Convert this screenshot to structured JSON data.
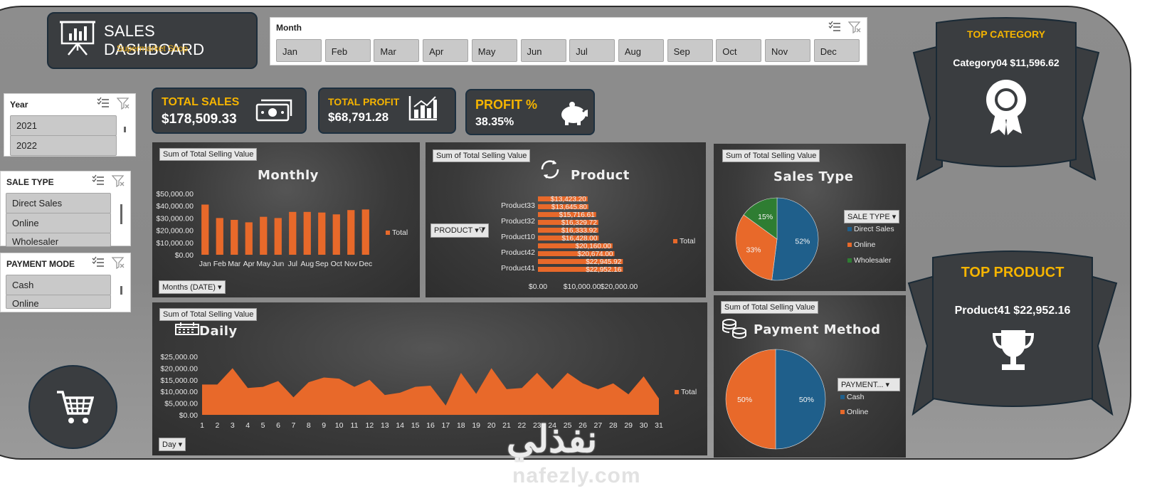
{
  "header": {
    "title": "SALES DASHBOARD",
    "subtitle": "Supermarket Shop",
    "icon": "presentation-board-icon"
  },
  "month_slicer": {
    "title": "Month",
    "items": [
      "Jan",
      "Feb",
      "Mar",
      "Apr",
      "May",
      "Jun",
      "Jul",
      "Aug",
      "Sep",
      "Oct",
      "Nov",
      "Dec"
    ]
  },
  "year_slicer": {
    "title": "Year",
    "items": [
      "2021",
      "2022"
    ]
  },
  "sale_type_slicer": {
    "title": "SALE TYPE",
    "items": [
      "Direct Sales",
      "Online",
      "Wholesaler"
    ]
  },
  "payment_mode_slicer": {
    "title": "PAYMENT MODE",
    "items": [
      "Cash",
      "Online"
    ]
  },
  "kpis": {
    "total_sales": {
      "label": "TOTAL SALES",
      "value": "$178,509.33",
      "icon": "cash-icon"
    },
    "total_profit": {
      "label": "TOTAL PROFIT",
      "value": "$68,791.28",
      "icon": "bar-chart-icon"
    },
    "profit_pct": {
      "label": "PROFIT %",
      "value": "38.35%",
      "icon": "piggy-bank-icon"
    }
  },
  "top_category": {
    "label": "TOP CATEGORY",
    "value": "Category04 $11,596.62",
    "icon": "award-rosette-icon"
  },
  "top_product": {
    "label": "TOP PRODUCT",
    "value": "Product41 $22,952.16",
    "icon": "trophy-icon"
  },
  "common": {
    "field": "Sum of Total Selling Value",
    "legend_total": "Total"
  },
  "colors": {
    "orange": "#e8692a",
    "blue": "#1f5f8b",
    "green": "#2e7d32",
    "gold": "#f5b400",
    "panel": "#3a3a3a"
  },
  "monthly_chart": {
    "title": "Monthly",
    "filter": "Months (DATE)",
    "chart_data": {
      "type": "bar",
      "categories": [
        "Jan",
        "Feb",
        "Mar",
        "Apr",
        "May",
        "Jun",
        "Jul",
        "Aug",
        "Sep",
        "Oct",
        "Nov",
        "Dec"
      ],
      "series": [
        {
          "name": "Total",
          "values": [
            41000,
            30000,
            28500,
            26500,
            31000,
            30000,
            35000,
            35000,
            34500,
            33000,
            36500,
            37000
          ]
        }
      ],
      "yticks": [
        "$50,000.00",
        "$40,000.00",
        "$30,000.00",
        "$20,000.00",
        "$10,000.00",
        "$0.00"
      ],
      "ylim": [
        0,
        50000
      ]
    }
  },
  "product_chart": {
    "title": "Product",
    "filter": "PRODUCT",
    "chart_data": {
      "type": "bar",
      "orientation": "horizontal",
      "bar_labels": [
        "$13,423.20",
        "$13,645.80",
        "$15,716.61",
        "$16,329.72",
        "$16,333.92",
        "$16,428.00",
        "$20,160.00",
        "$20,674.00",
        "$22,945.92",
        "$22,952.16"
      ],
      "values": [
        13423.2,
        13645.8,
        15716.61,
        16329.72,
        16333.92,
        16428.0,
        20160.0,
        20674.0,
        22945.92,
        22952.16
      ],
      "visible_category_labels": [
        "Product33",
        "Product32",
        "Product10",
        "Product42",
        "Product41"
      ],
      "xticks": [
        "$0.00",
        "$10,000.00",
        "$20,000.00"
      ],
      "xlim": [
        0,
        25000
      ]
    }
  },
  "sales_type_chart": {
    "title": "Sales Type",
    "filter": "SALE TYPE",
    "chart_data": {
      "type": "pie",
      "labels": [
        "Direct Sales",
        "Online",
        "Wholesaler"
      ],
      "values": [
        52,
        33,
        15
      ],
      "value_labels": [
        "52%",
        "33%",
        "15%"
      ],
      "colors": [
        "#1f5f8b",
        "#e8692a",
        "#2e7d32"
      ]
    }
  },
  "daily_chart": {
    "title": "Daily",
    "filter": "Day",
    "chart_data": {
      "type": "area",
      "x": [
        "1",
        "2",
        "3",
        "4",
        "5",
        "6",
        "7",
        "8",
        "9",
        "10",
        "11",
        "12",
        "13",
        "14",
        "15",
        "16",
        "17",
        "18",
        "19",
        "20",
        "21",
        "22",
        "23",
        "24",
        "25",
        "26",
        "27",
        "28",
        "29",
        "30",
        "31"
      ],
      "series": [
        {
          "name": "Total",
          "values": [
            13000,
            13000,
            20000,
            11500,
            12000,
            14500,
            7500,
            14000,
            16000,
            15500,
            12000,
            15000,
            8500,
            9500,
            12000,
            12500,
            4000,
            18000,
            9000,
            20000,
            11000,
            11500,
            18000,
            11000,
            18000,
            13500,
            11000,
            13500,
            8800,
            16500,
            7000
          ]
        }
      ],
      "yticks": [
        "$25,000.00",
        "$20,000.00",
        "$15,000.00",
        "$10,000.00",
        "$5,000.00",
        "$0.00"
      ],
      "ylim": [
        0,
        25000
      ]
    }
  },
  "payment_chart": {
    "title": "Payment Method",
    "filter": "PAYMENT...",
    "chart_data": {
      "type": "pie",
      "labels": [
        "Cash",
        "Online"
      ],
      "values": [
        50,
        50
      ],
      "value_labels": [
        "50%",
        "50%"
      ],
      "colors": [
        "#1f5f8b",
        "#e8692a"
      ]
    }
  },
  "cart": {
    "icon": "shopping-cart-icon"
  },
  "watermark": {
    "arabic": "نفذلي",
    "latin": "nafezly.com"
  }
}
